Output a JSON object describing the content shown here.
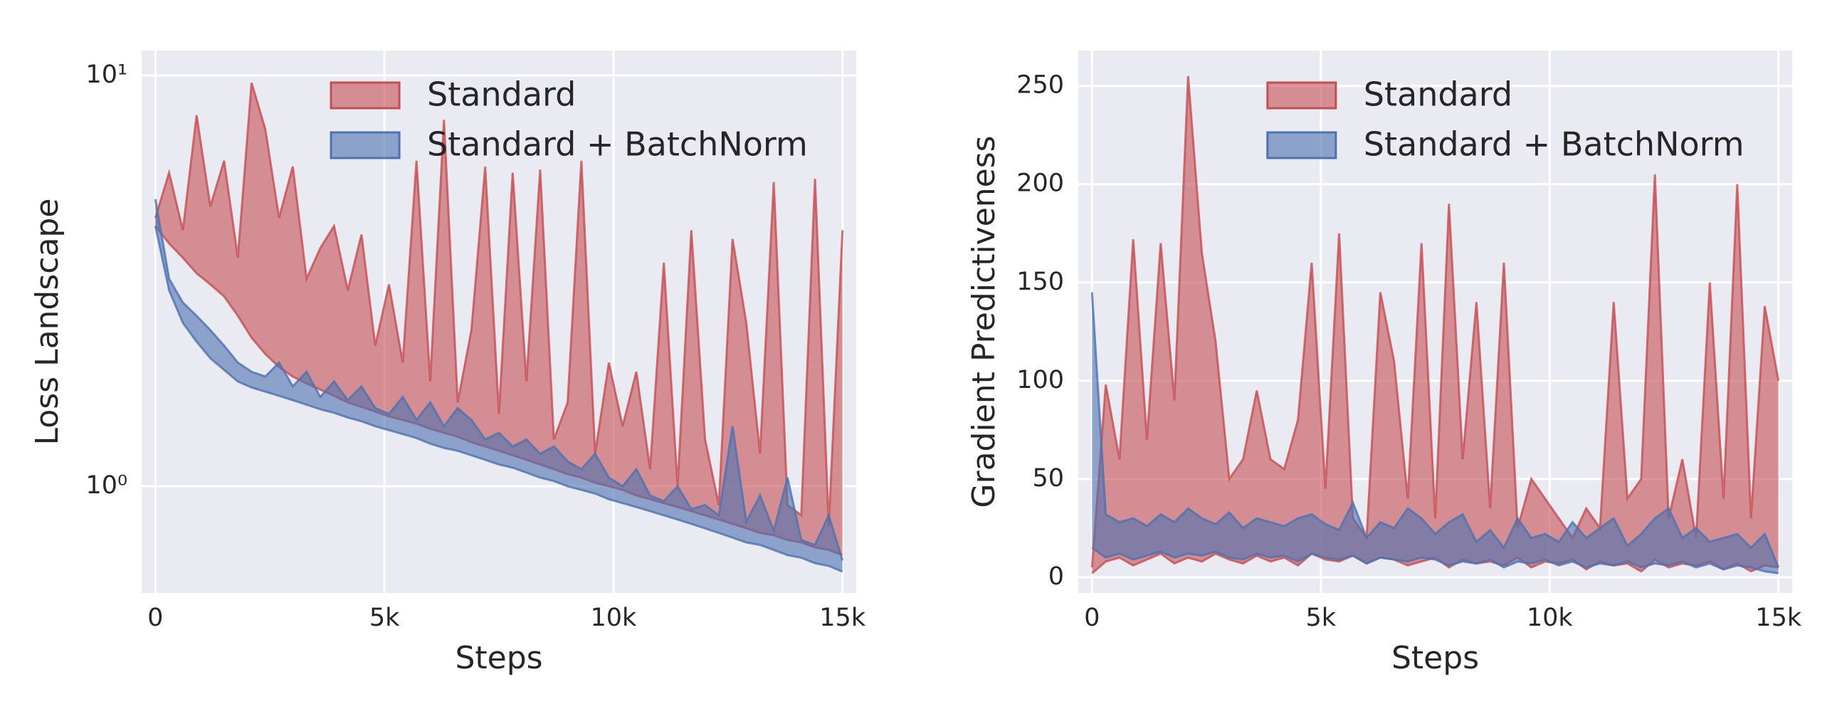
{
  "chart_data": [
    {
      "type": "band",
      "xlabel": "Steps",
      "ylabel": "Loss Landscape",
      "log_scale": true,
      "grid": true,
      "legend": "upper center",
      "x": [
        0,
        300,
        600,
        900,
        1200,
        1500,
        1800,
        2100,
        2400,
        2700,
        3000,
        3300,
        3600,
        3900,
        4200,
        4500,
        4800,
        5100,
        5400,
        5700,
        6000,
        6300,
        6600,
        6900,
        7200,
        7500,
        7800,
        8100,
        8400,
        8700,
        9000,
        9300,
        9600,
        9900,
        10200,
        10500,
        10800,
        11100,
        11400,
        11700,
        12000,
        12300,
        12600,
        12900,
        13200,
        13500,
        13800,
        14100,
        14400,
        14700,
        15000
      ],
      "series": [
        {
          "name": "Standard",
          "color": "#c44e52",
          "lower": [
            4.3,
            3.9,
            3.6,
            3.3,
            3.1,
            2.9,
            2.6,
            2.3,
            2.1,
            1.95,
            1.85,
            1.78,
            1.72,
            1.66,
            1.6,
            1.56,
            1.52,
            1.48,
            1.45,
            1.42,
            1.38,
            1.35,
            1.32,
            1.28,
            1.25,
            1.22,
            1.19,
            1.16,
            1.13,
            1.1,
            1.07,
            1.05,
            1.02,
            1.0,
            0.98,
            0.95,
            0.93,
            0.91,
            0.89,
            0.87,
            0.85,
            0.83,
            0.81,
            0.79,
            0.77,
            0.76,
            0.74,
            0.73,
            0.71,
            0.7,
            0.68
          ],
          "upper": [
            4.5,
            5.8,
            4.2,
            8.0,
            4.8,
            6.2,
            3.6,
            9.6,
            7.4,
            4.5,
            6.0,
            3.2,
            3.8,
            4.3,
            3.0,
            4.1,
            2.2,
            3.1,
            2.0,
            6.2,
            1.8,
            7.8,
            1.6,
            2.4,
            6.0,
            1.5,
            5.8,
            1.8,
            5.9,
            1.3,
            1.6,
            6.2,
            1.2,
            2.0,
            1.4,
            1.9,
            1.1,
            3.5,
            1.0,
            4.2,
            1.3,
            0.9,
            4.0,
            2.5,
            1.2,
            5.5,
            0.9,
            0.85,
            5.6,
            0.8,
            4.2
          ]
        },
        {
          "name": "Standard + BatchNorm",
          "color": "#4c72b0",
          "lower": [
            4.3,
            3.0,
            2.5,
            2.25,
            2.05,
            1.92,
            1.8,
            1.74,
            1.7,
            1.66,
            1.62,
            1.58,
            1.54,
            1.51,
            1.47,
            1.44,
            1.4,
            1.37,
            1.34,
            1.31,
            1.27,
            1.24,
            1.22,
            1.19,
            1.16,
            1.13,
            1.11,
            1.08,
            1.05,
            1.03,
            1.0,
            0.98,
            0.96,
            0.93,
            0.91,
            0.89,
            0.87,
            0.85,
            0.83,
            0.81,
            0.79,
            0.77,
            0.75,
            0.73,
            0.72,
            0.7,
            0.68,
            0.67,
            0.65,
            0.64,
            0.62
          ],
          "upper": [
            5.0,
            3.2,
            2.8,
            2.6,
            2.4,
            2.2,
            2.0,
            1.9,
            1.85,
            2.0,
            1.75,
            1.9,
            1.65,
            1.8,
            1.62,
            1.75,
            1.55,
            1.5,
            1.65,
            1.45,
            1.6,
            1.4,
            1.55,
            1.45,
            1.3,
            1.35,
            1.25,
            1.3,
            1.2,
            1.25,
            1.15,
            1.1,
            1.2,
            1.05,
            1.0,
            1.1,
            0.95,
            0.92,
            1.0,
            0.88,
            0.9,
            0.85,
            1.4,
            0.82,
            0.95,
            0.78,
            1.05,
            0.74,
            0.72,
            0.85,
            0.66
          ]
        }
      ],
      "xlim": [
        -300,
        15300
      ],
      "xticks": [
        0,
        {
          "value": 5000,
          "label": "5k"
        },
        {
          "value": 10000,
          "label": "10k"
        },
        {
          "value": 15000,
          "label": "15k"
        }
      ],
      "ylim": [
        0.55,
        11.5
      ],
      "yticks": [
        {
          "value": 1,
          "label": "10⁰"
        },
        {
          "value": 10,
          "label": "10¹"
        }
      ]
    },
    {
      "type": "band",
      "xlabel": "Steps",
      "ylabel": "Gradient Predictiveness",
      "log_scale": false,
      "grid": true,
      "legend": "upper center",
      "x": [
        0,
        300,
        600,
        900,
        1200,
        1500,
        1800,
        2100,
        2400,
        2700,
        3000,
        3300,
        3600,
        3900,
        4200,
        4500,
        4800,
        5100,
        5400,
        5700,
        6000,
        6300,
        6600,
        6900,
        7200,
        7500,
        7800,
        8100,
        8400,
        8700,
        9000,
        9300,
        9600,
        9900,
        10200,
        10500,
        10800,
        11100,
        11400,
        11700,
        12000,
        12300,
        12600,
        12900,
        13200,
        13500,
        13800,
        14100,
        14400,
        14700,
        15000
      ],
      "series": [
        {
          "name": "Standard",
          "color": "#c44e52",
          "lower": [
            2,
            8,
            10,
            6,
            9,
            12,
            7,
            10,
            8,
            12,
            9,
            7,
            11,
            8,
            10,
            6,
            12,
            9,
            8,
            11,
            7,
            10,
            9,
            6,
            8,
            10,
            5,
            9,
            7,
            8,
            6,
            10,
            5,
            8,
            7,
            9,
            4,
            8,
            6,
            7,
            3,
            9,
            5,
            7,
            6,
            8,
            4,
            7,
            3,
            6,
            5
          ],
          "upper": [
            5,
            98,
            60,
            172,
            70,
            170,
            90,
            255,
            165,
            120,
            50,
            60,
            95,
            60,
            55,
            80,
            160,
            45,
            175,
            30,
            20,
            145,
            110,
            40,
            170,
            30,
            190,
            60,
            140,
            35,
            160,
            25,
            50,
            40,
            30,
            20,
            35,
            25,
            140,
            40,
            50,
            205,
            30,
            60,
            20,
            150,
            40,
            200,
            30,
            138,
            100
          ]
        },
        {
          "name": "Standard + BatchNorm",
          "color": "#4c72b0",
          "lower": [
            15,
            10,
            12,
            9,
            11,
            13,
            10,
            12,
            11,
            13,
            10,
            9,
            12,
            10,
            11,
            8,
            12,
            10,
            9,
            11,
            7,
            10,
            9,
            8,
            10,
            9,
            6,
            8,
            7,
            9,
            5,
            8,
            7,
            9,
            6,
            8,
            5,
            7,
            6,
            8,
            5,
            7,
            6,
            8,
            5,
            7,
            4,
            6,
            5,
            3,
            2
          ],
          "upper": [
            145,
            32,
            28,
            30,
            26,
            32,
            28,
            35,
            30,
            27,
            33,
            25,
            30,
            28,
            26,
            30,
            32,
            27,
            24,
            38,
            20,
            28,
            25,
            35,
            30,
            22,
            28,
            32,
            18,
            24,
            15,
            30,
            20,
            22,
            18,
            28,
            20,
            25,
            30,
            16,
            22,
            30,
            35,
            20,
            25,
            18,
            20,
            22,
            15,
            22,
            5
          ]
        }
      ],
      "xlim": [
        -300,
        15300
      ],
      "xticks": [
        0,
        {
          "value": 5000,
          "label": "5k"
        },
        {
          "value": 10000,
          "label": "10k"
        },
        {
          "value": 15000,
          "label": "15k"
        }
      ],
      "ylim": [
        -8,
        268
      ],
      "yticks": [
        0,
        50,
        100,
        150,
        200,
        250
      ]
    }
  ]
}
